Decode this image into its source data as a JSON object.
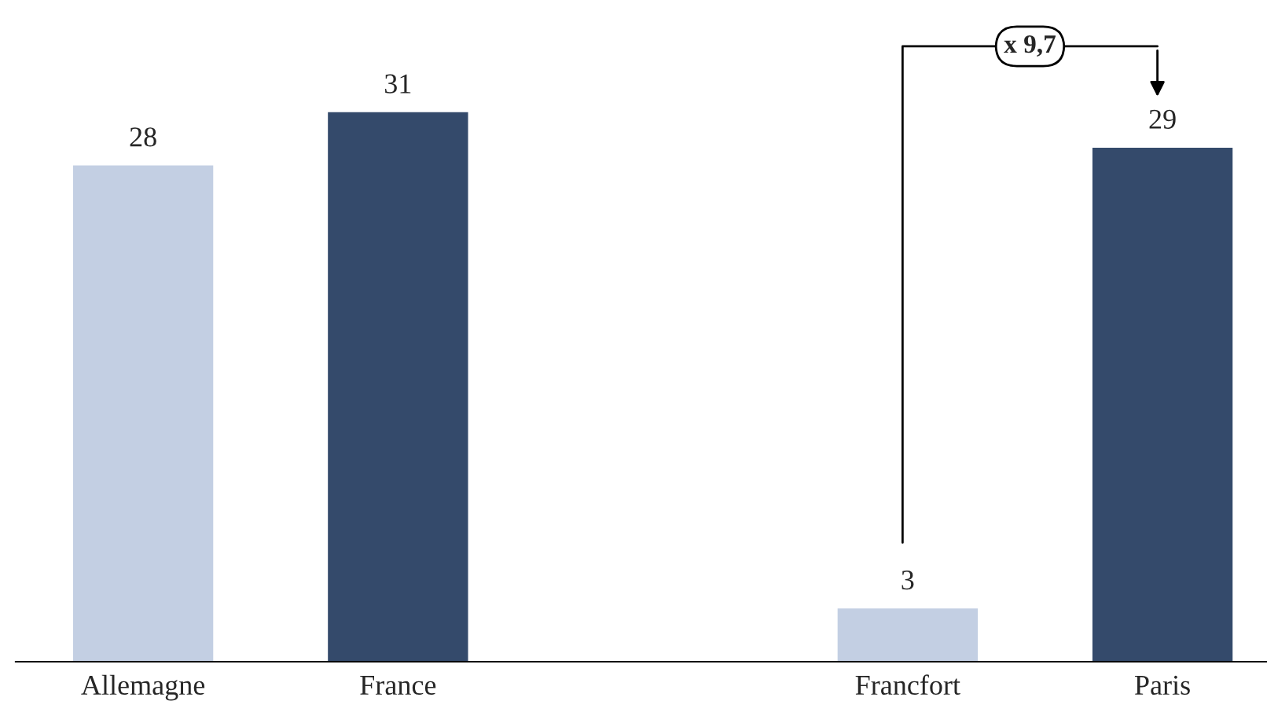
{
  "chart_data": {
    "type": "bar",
    "categories": [
      "Allemagne",
      "France",
      null,
      "Francfort",
      "Paris"
    ],
    "values": [
      28,
      31,
      null,
      3,
      29
    ],
    "colors": [
      "#c3cfe3",
      "#344a6b",
      null,
      "#c3cfe3",
      "#344a6b"
    ],
    "data_labels": true,
    "grid": false,
    "annotations": [
      "x 9,7"
    ]
  }
}
